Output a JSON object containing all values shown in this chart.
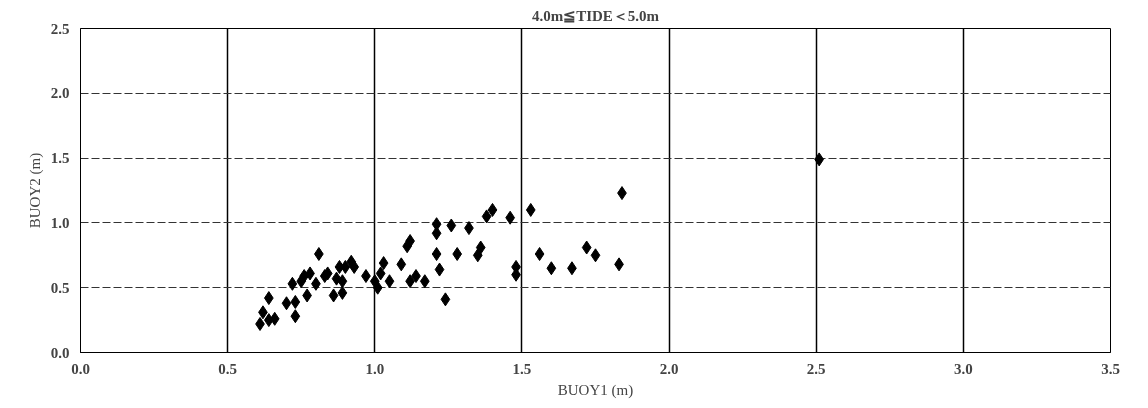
{
  "chart_data": {
    "type": "scatter",
    "title": "4.0m≦TIDE＜5.0m",
    "xlabel": "BUOY1 (m)",
    "ylabel": "BUOY2 (m)",
    "x": [
      0.61,
      0.62,
      0.64,
      0.64,
      0.66,
      0.7,
      0.72,
      0.73,
      0.73,
      0.75,
      0.76,
      0.77,
      0.78,
      0.8,
      0.81,
      0.83,
      0.84,
      0.86,
      0.87,
      0.88,
      0.89,
      0.89,
      0.9,
      0.92,
      0.93,
      0.97,
      1.0,
      1.01,
      1.02,
      1.03,
      1.05,
      1.09,
      1.11,
      1.12,
      1.12,
      1.14,
      1.17,
      1.21,
      1.21,
      1.21,
      1.22,
      1.24,
      1.26,
      1.28,
      1.32,
      1.35,
      1.36,
      1.38,
      1.4,
      1.46,
      1.48,
      1.48,
      1.53,
      1.56,
      1.6,
      1.67,
      1.72,
      1.75,
      1.83,
      1.84,
      2.51
    ],
    "series": [
      {
        "color": "#000000",
        "values": [
          0.22,
          0.31,
          0.42,
          0.25,
          0.26,
          0.38,
          0.53,
          0.28,
          0.39,
          0.55,
          0.59,
          0.44,
          0.61,
          0.53,
          0.76,
          0.59,
          0.61,
          0.44,
          0.57,
          0.66,
          0.46,
          0.55,
          0.66,
          0.7,
          0.66,
          0.59,
          0.55,
          0.5,
          0.61,
          0.69,
          0.55,
          0.68,
          0.82,
          0.86,
          0.55,
          0.59,
          0.55,
          0.76,
          0.92,
          0.99,
          0.64,
          0.41,
          0.98,
          0.76,
          0.96,
          0.75,
          0.81,
          1.05,
          1.1,
          1.04,
          0.66,
          0.6,
          1.1,
          0.76,
          0.65,
          0.65,
          0.81,
          0.75,
          0.68,
          1.23,
          1.49
        ]
      }
    ],
    "marker": "diamond",
    "grid": true,
    "xlim": [
      0,
      3.5
    ],
    "xticks": [
      {
        "value": 0,
        "label": "0.0"
      },
      0.5,
      {
        "value": 1,
        "label": "1.0"
      },
      1.5,
      {
        "value": 2,
        "label": "2.0"
      },
      2.5,
      {
        "value": 3,
        "label": "3.0"
      },
      3.5
    ],
    "ylim": [
      0,
      2.5
    ],
    "yticks": [
      {
        "value": 0,
        "label": "0.0"
      },
      0.5,
      {
        "value": 1,
        "label": "1.0"
      },
      1.5,
      {
        "value": 2,
        "label": "2.0"
      },
      2.5
    ]
  }
}
